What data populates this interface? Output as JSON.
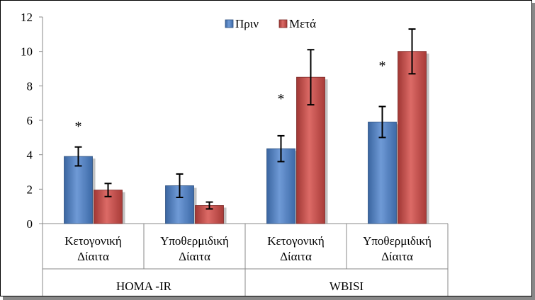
{
  "chart_data": {
    "type": "bar",
    "title": "",
    "xlabel": "",
    "ylabel": "",
    "ylim": [
      0,
      12
    ],
    "yticks": [
      0,
      2,
      4,
      6,
      8,
      10,
      12
    ],
    "grid": false,
    "legend_position": "top-center",
    "groups": [
      {
        "label": "HOMA -IR",
        "categories": [
          "Κετογονική Δίαιτα",
          "Υποθερμιδική Δίαιτα"
        ]
      },
      {
        "label": "WBISI",
        "categories": [
          "Κετογονική Δίαιτα",
          "Υποθερμιδική Δίαιτα"
        ]
      }
    ],
    "categories": [
      [
        "Κετογονική",
        "Δίαιτα"
      ],
      [
        "Υποθερμιδική",
        "Δίαιτα"
      ],
      [
        "Κετογονική",
        "Δίαιτα"
      ],
      [
        "Υποθερμιδική",
        "Δίαιτα"
      ]
    ],
    "series": [
      {
        "name": "Πριν",
        "color": "#4f81bd",
        "values": [
          3.9,
          2.2,
          4.35,
          5.9
        ],
        "errors": [
          0.55,
          0.68,
          0.75,
          0.9
        ]
      },
      {
        "name": "Μετά",
        "color": "#c0504d",
        "values": [
          1.95,
          1.05,
          8.5,
          10.0
        ],
        "errors": [
          0.38,
          0.2,
          1.6,
          1.3
        ]
      }
    ],
    "annotations": [
      {
        "text": "*",
        "category_index": 0,
        "y": 5.8
      },
      {
        "text": "*",
        "category_index": 2,
        "y": 7.4
      },
      {
        "text": "*",
        "category_index": 3,
        "y": 9.3
      }
    ]
  }
}
